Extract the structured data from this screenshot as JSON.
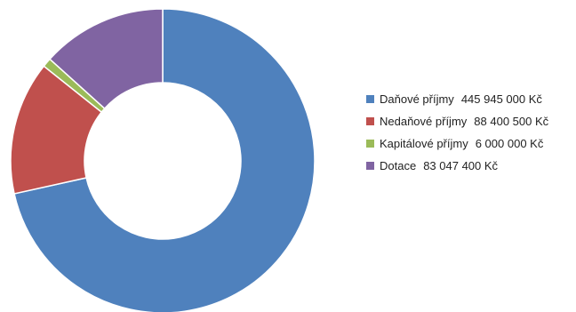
{
  "chart_data": {
    "type": "pie",
    "donut": true,
    "legend_position": "right",
    "series": [
      {
        "name": "Daňové příjmy",
        "value": 445945000,
        "value_label": "445 945 000 Kč",
        "color": "#4F81BD"
      },
      {
        "name": "Nedaňové příjmy",
        "value": 88400500,
        "value_label": "88 400 500 Kč",
        "color": "#C0504D"
      },
      {
        "name": "Kapitálové příjmy",
        "value": 6000000,
        "value_label": "6 000 000 Kč",
        "color": "#9BBB59"
      },
      {
        "name": "Dotace",
        "value": 83047400,
        "value_label": "83 047 400 Kč",
        "color": "#8064A2"
      }
    ]
  }
}
